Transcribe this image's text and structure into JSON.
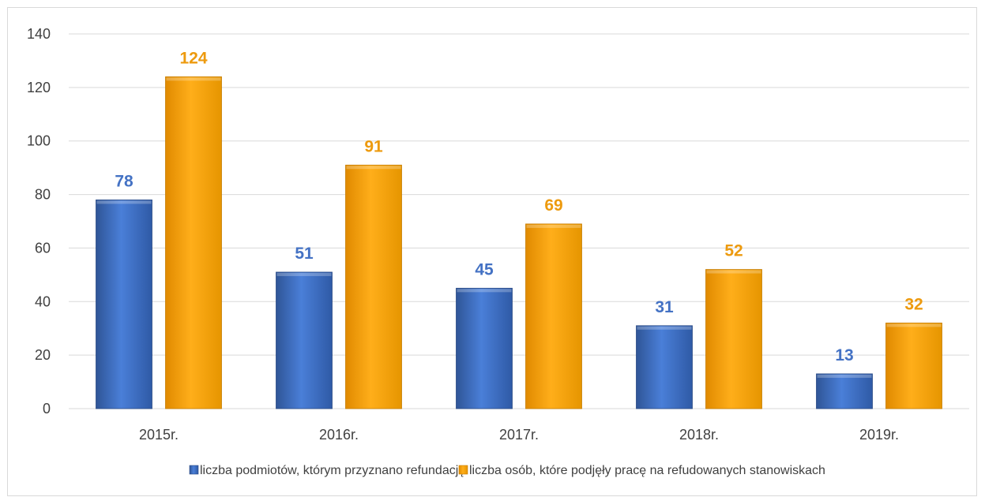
{
  "chart_data": {
    "type": "bar",
    "categories": [
      "2015r.",
      "2016r.",
      "2017r.",
      "2018r.",
      "2019r."
    ],
    "series": [
      {
        "name": "liczba podmiotów, którym przyznano refundację",
        "values": [
          78,
          51,
          45,
          31,
          13
        ],
        "color": "#4472c4"
      },
      {
        "name": "liczba osób, które podjęły pracę na refudowanych stanowiskach",
        "values": [
          124,
          91,
          69,
          52,
          32
        ],
        "color": "#ffa500"
      }
    ],
    "yticks": [
      "0",
      "20",
      "40",
      "60",
      "80",
      "100",
      "120",
      "140"
    ],
    "ylim": [
      0,
      140
    ],
    "grid": true,
    "legend_position": "bottom",
    "data_label_colors": [
      "#4472c4",
      "#ed9a0e"
    ]
  }
}
